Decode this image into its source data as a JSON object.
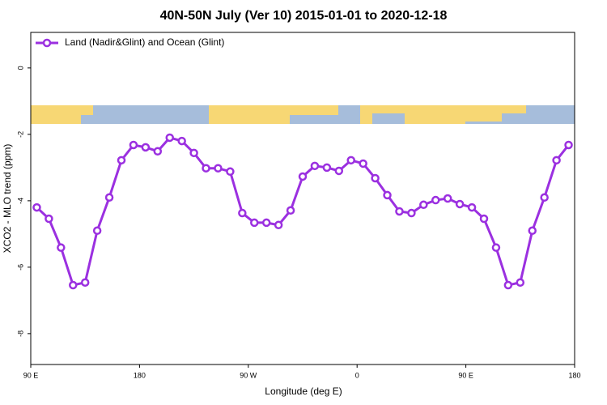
{
  "chart_data": {
    "type": "line",
    "title": "40N-50N July (Ver 10)   2015-01-01 to 2020-12-18",
    "x_label": "Longitude (deg E)",
    "y_label": "XCO2 - MLO trend (ppm)",
    "x": [
      95,
      105,
      115,
      125,
      135,
      145,
      155,
      165,
      175,
      185,
      195,
      205,
      215,
      225,
      235,
      245,
      255,
      265,
      275,
      285,
      295,
      305,
      315,
      325,
      335,
      345,
      355,
      365,
      375,
      385,
      395,
      405,
      415,
      425,
      435,
      445,
      455,
      465,
      475,
      485,
      495,
      505,
      515,
      525,
      535
    ],
    "series": [
      {
        "name": "Land (Nadir&Glint) and Ocean (Glint)",
        "color": "#9b30e0",
        "values": [
          -4.2,
          -4.54,
          -5.41,
          -6.54,
          -6.46,
          -4.9,
          -3.9,
          -2.78,
          -2.32,
          -2.39,
          -2.51,
          -2.1,
          -2.2,
          -2.56,
          -3.02,
          -3.02,
          -3.12,
          -4.37,
          -4.66,
          -4.66,
          -4.73,
          -4.29,
          -3.27,
          -2.95,
          -3.0,
          -3.1,
          -2.78,
          -2.88,
          -3.32,
          -3.83,
          -4.32,
          -4.37,
          -4.12,
          -3.98,
          -3.93,
          -4.1,
          -4.2,
          -4.54,
          -5.41,
          -6.54,
          -6.46,
          -4.9,
          -3.9,
          -2.78,
          -2.32
        ]
      }
    ],
    "xlim": [
      90,
      540
    ],
    "xticks": [
      {
        "value": 90,
        "label": "90 E"
      },
      180,
      {
        "value": 270,
        "label": "90 W"
      },
      {
        "value": 360,
        "label": "0"
      },
      {
        "value": 450,
        "label": "90 E"
      },
      {
        "value": 540,
        "label": "180"
      }
    ],
    "ylim": [
      -8.93,
      1.07
    ],
    "yticks": [
      -8,
      -6,
      -4,
      -2,
      0
    ],
    "legend": "top-left"
  }
}
